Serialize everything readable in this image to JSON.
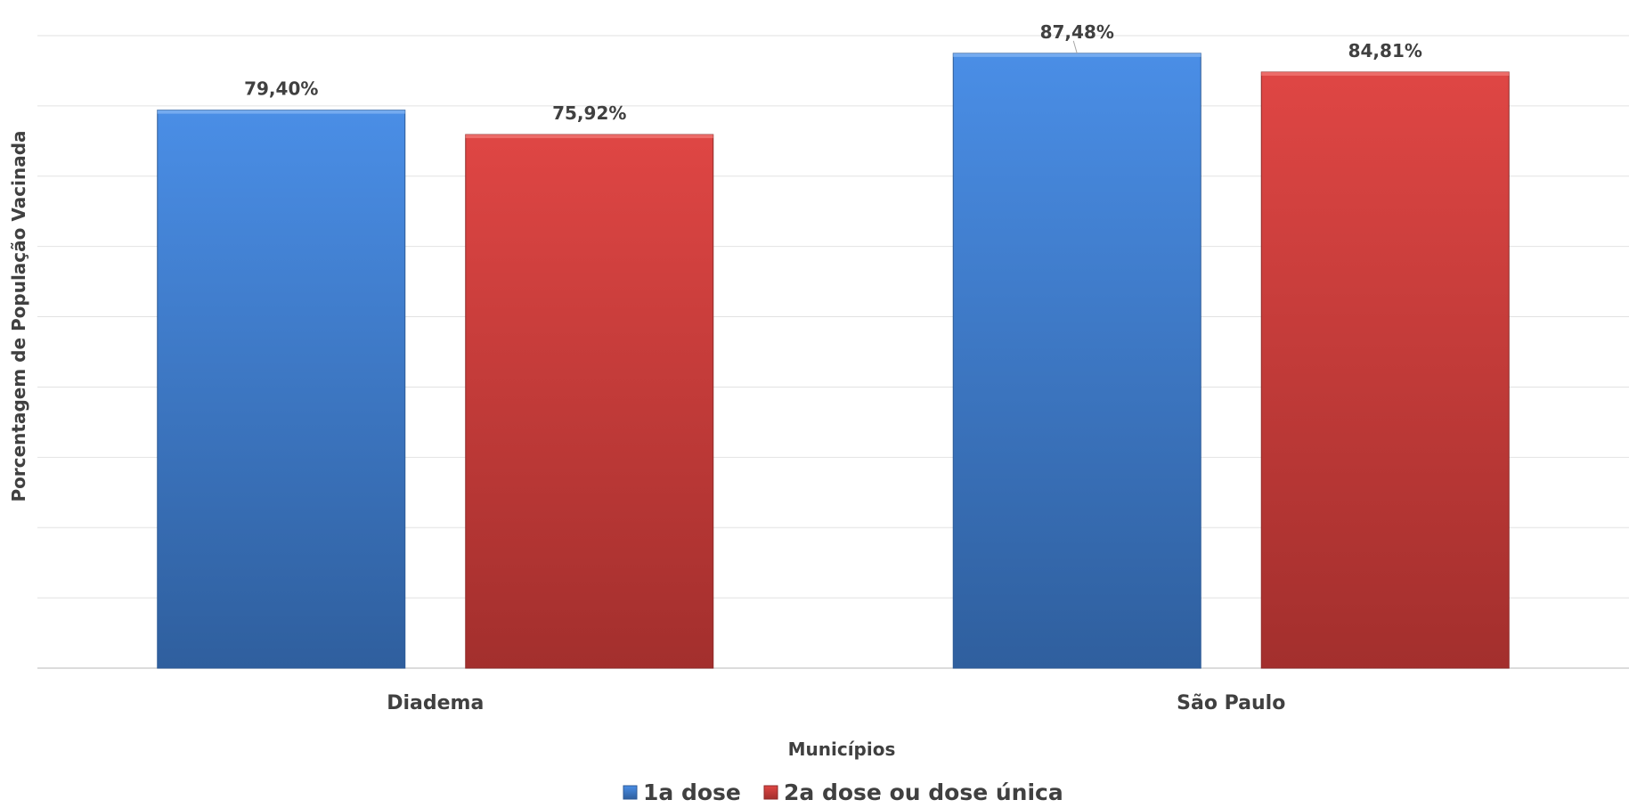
{
  "chart_data": {
    "type": "bar",
    "categories": [
      "Diadema",
      "São Paulo"
    ],
    "series": [
      {
        "name": "1a dose",
        "values": [
          79.4,
          87.48
        ],
        "labels": [
          "79,40%",
          "87,48%"
        ],
        "color": "#3f7fd6"
      },
      {
        "name": "2a dose ou dose única",
        "values": [
          75.92,
          84.81
        ],
        "labels": [
          "75,92%",
          "84,81%"
        ],
        "color": "#d33f3d"
      }
    ],
    "xlabel": "Municípios",
    "ylabel": "Porcentagem de População Vacinada",
    "ylim": [
      0,
      90
    ],
    "grid": true,
    "legend_position": "bottom"
  }
}
